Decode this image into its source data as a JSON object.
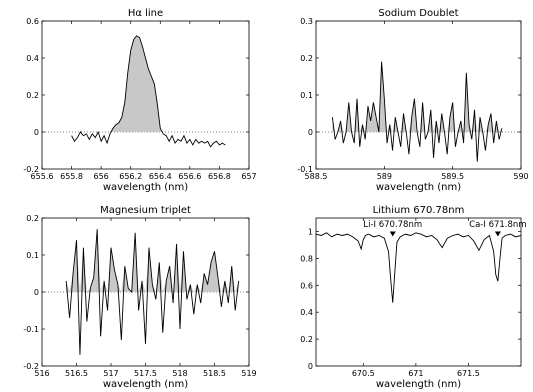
{
  "chart_data": [
    {
      "type": "line",
      "title": "Hα line",
      "xlabel": "wavelength (nm)",
      "ylabel": "",
      "xlim": [
        655.6,
        657
      ],
      "ylim": [
        -0.2,
        0.6
      ],
      "xticks": [
        "655.6",
        "655.8",
        "656",
        "656.2",
        "656.4",
        "656.6",
        "656.8",
        "657"
      ],
      "yticks": [
        "-0.2",
        "0",
        "0.2",
        "0.4",
        "0.6"
      ],
      "zero_line": "dotted",
      "fill_positive": true,
      "series": [
        {
          "x": [
            655.8,
            655.82,
            655.84,
            655.86,
            655.88,
            655.9,
            655.92,
            655.94,
            655.96,
            655.98,
            656.0,
            656.02,
            656.04,
            656.06,
            656.08,
            656.1,
            656.12,
            656.14,
            656.16,
            656.18,
            656.2,
            656.22,
            656.24,
            656.26,
            656.28,
            656.3,
            656.32,
            656.34,
            656.36,
            656.38,
            656.4,
            656.42,
            656.44,
            656.46,
            656.48,
            656.5,
            656.52,
            656.54,
            656.56,
            656.58,
            656.6,
            656.62,
            656.64,
            656.66,
            656.68,
            656.7,
            656.72,
            656.74,
            656.76,
            656.78,
            656.8,
            656.82,
            656.84
          ],
          "y": [
            -0.02,
            -0.05,
            -0.03,
            0.0,
            -0.02,
            -0.01,
            -0.04,
            -0.01,
            -0.03,
            0.0,
            -0.05,
            -0.02,
            -0.06,
            -0.01,
            0.02,
            0.04,
            0.05,
            0.08,
            0.16,
            0.32,
            0.44,
            0.5,
            0.52,
            0.51,
            0.46,
            0.4,
            0.34,
            0.3,
            0.26,
            0.15,
            0.02,
            -0.01,
            -0.02,
            -0.05,
            -0.02,
            -0.06,
            -0.04,
            -0.05,
            -0.02,
            -0.06,
            -0.04,
            -0.07,
            -0.04,
            -0.06,
            -0.05,
            -0.06,
            -0.05,
            -0.08,
            -0.06,
            -0.05,
            -0.07,
            -0.06,
            -0.07
          ]
        }
      ]
    },
    {
      "type": "line",
      "title": "Sodium Doublet",
      "xlabel": "wavelength (nm)",
      "ylabel": "",
      "xlim": [
        588.5,
        590
      ],
      "ylim": [
        -0.1,
        0.3
      ],
      "xticks": [
        "588.5",
        "589",
        "589.5",
        "590"
      ],
      "yticks": [
        "-0.1",
        "0",
        "0.1",
        "0.2",
        "0.3"
      ],
      "zero_line": "dotted",
      "fill_positive": true,
      "series": [
        {
          "x": [
            588.62,
            588.64,
            588.66,
            588.68,
            588.7,
            588.72,
            588.74,
            588.76,
            588.78,
            588.8,
            588.82,
            588.84,
            588.86,
            588.88,
            588.9,
            588.92,
            588.94,
            588.96,
            588.98,
            589.0,
            589.02,
            589.04,
            589.06,
            589.08,
            589.1,
            589.12,
            589.14,
            589.16,
            589.18,
            589.2,
            589.22,
            589.24,
            589.26,
            589.28,
            589.3,
            589.32,
            589.34,
            589.36,
            589.38,
            589.4,
            589.42,
            589.44,
            589.46,
            589.48,
            589.5,
            589.52,
            589.54,
            589.56,
            589.58,
            589.6,
            589.62,
            589.64,
            589.66,
            589.68,
            589.7,
            589.72,
            589.74,
            589.76,
            589.78,
            589.8,
            589.82,
            589.84,
            589.86
          ],
          "y": [
            0.04,
            -0.02,
            0.0,
            0.03,
            -0.03,
            0.0,
            0.08,
            0.0,
            -0.03,
            0.09,
            -0.04,
            0.02,
            -0.02,
            0.07,
            0.03,
            0.08,
            0.04,
            0.0,
            0.19,
            0.09,
            -0.03,
            0.02,
            -0.05,
            0.04,
            0.0,
            -0.04,
            0.05,
            0.0,
            -0.06,
            0.04,
            0.09,
            0.0,
            -0.04,
            0.08,
            -0.02,
            0.0,
            0.06,
            -0.07,
            0.03,
            -0.03,
            0.05,
            0.0,
            -0.06,
            0.04,
            0.08,
            -0.04,
            0.0,
            0.03,
            -0.03,
            0.16,
            0.02,
            -0.02,
            0.06,
            -0.08,
            0.04,
            0.0,
            -0.05,
            0.02,
            0.05,
            -0.03,
            0.03,
            -0.02,
            0.01
          ]
        }
      ]
    },
    {
      "type": "line",
      "title": "Magnesium triplet",
      "xlabel": "wavelength (nm)",
      "ylabel": "",
      "xlim": [
        516,
        519
      ],
      "ylim": [
        -0.2,
        0.2
      ],
      "xticks": [
        "516",
        "516.5",
        "517",
        "517.5",
        "518",
        "518.5",
        "519"
      ],
      "yticks": [
        "-0.2",
        "-0.1",
        "0",
        "0.1",
        "0.2"
      ],
      "zero_line": "dotted",
      "fill_positive": true,
      "series": [
        {
          "x": [
            516.35,
            516.4,
            516.45,
            516.5,
            516.55,
            516.6,
            516.65,
            516.7,
            516.75,
            516.8,
            516.85,
            516.9,
            516.95,
            517.0,
            517.05,
            517.1,
            517.15,
            517.2,
            517.25,
            517.3,
            517.35,
            517.4,
            517.45,
            517.5,
            517.55,
            517.6,
            517.65,
            517.7,
            517.75,
            517.8,
            517.85,
            517.9,
            517.95,
            518.0,
            518.05,
            518.1,
            518.15,
            518.2,
            518.25,
            518.3,
            518.35,
            518.4,
            518.45,
            518.5,
            518.55,
            518.6,
            518.65,
            518.7,
            518.75,
            518.8,
            518.85
          ],
          "y": [
            0.03,
            -0.07,
            0.05,
            0.14,
            -0.17,
            0.12,
            -0.08,
            0.01,
            0.04,
            0.17,
            -0.12,
            0.03,
            -0.05,
            0.12,
            0.06,
            0.02,
            -0.13,
            0.07,
            0.01,
            0.0,
            0.16,
            -0.05,
            0.03,
            -0.14,
            0.12,
            0.02,
            -0.02,
            0.08,
            -0.11,
            0.03,
            0.07,
            -0.03,
            0.13,
            -0.1,
            0.11,
            -0.02,
            0.02,
            -0.06,
            0.02,
            -0.03,
            0.05,
            0.02,
            0.08,
            0.11,
            0.04,
            -0.04,
            0.03,
            -0.03,
            0.07,
            -0.05,
            0.03
          ]
        }
      ]
    },
    {
      "type": "line",
      "title": "Lithium 670.78nm",
      "xlabel": "wavelength (nm)",
      "ylabel": "",
      "xlim": [
        670.05,
        672.0
      ],
      "ylim": [
        0,
        1.1
      ],
      "xticks": [
        "670.5",
        "671",
        "671.5"
      ],
      "yticks": [
        "0",
        "0.2",
        "0.4",
        "0.6",
        "0.8",
        "1"
      ],
      "annotations": [
        "Li-I 670.78nm",
        "Ca-I 671.8nm"
      ],
      "series": [
        {
          "x": [
            670.05,
            670.1,
            670.15,
            670.2,
            670.25,
            670.3,
            670.35,
            670.4,
            670.45,
            670.48,
            670.5,
            670.52,
            670.55,
            670.6,
            670.65,
            670.7,
            670.74,
            670.76,
            670.78,
            670.8,
            670.82,
            670.85,
            670.9,
            670.95,
            671.0,
            671.05,
            671.1,
            671.15,
            671.2,
            671.25,
            671.3,
            671.35,
            671.4,
            671.45,
            671.5,
            671.55,
            671.6,
            671.65,
            671.7,
            671.74,
            671.76,
            671.78,
            671.8,
            671.82,
            671.85,
            671.9,
            671.95,
            672.0
          ],
          "y": [
            0.98,
            0.97,
            0.99,
            0.96,
            0.98,
            0.97,
            0.98,
            0.96,
            0.93,
            0.87,
            0.94,
            0.97,
            0.98,
            0.96,
            0.97,
            0.95,
            0.85,
            0.65,
            0.47,
            0.7,
            0.92,
            0.96,
            0.98,
            0.97,
            0.99,
            0.98,
            0.96,
            0.97,
            0.94,
            0.88,
            0.95,
            0.97,
            0.98,
            0.96,
            0.97,
            0.93,
            0.86,
            0.94,
            0.97,
            0.85,
            0.68,
            0.63,
            0.8,
            0.95,
            0.97,
            0.98,
            0.96,
            0.97
          ]
        }
      ]
    }
  ]
}
